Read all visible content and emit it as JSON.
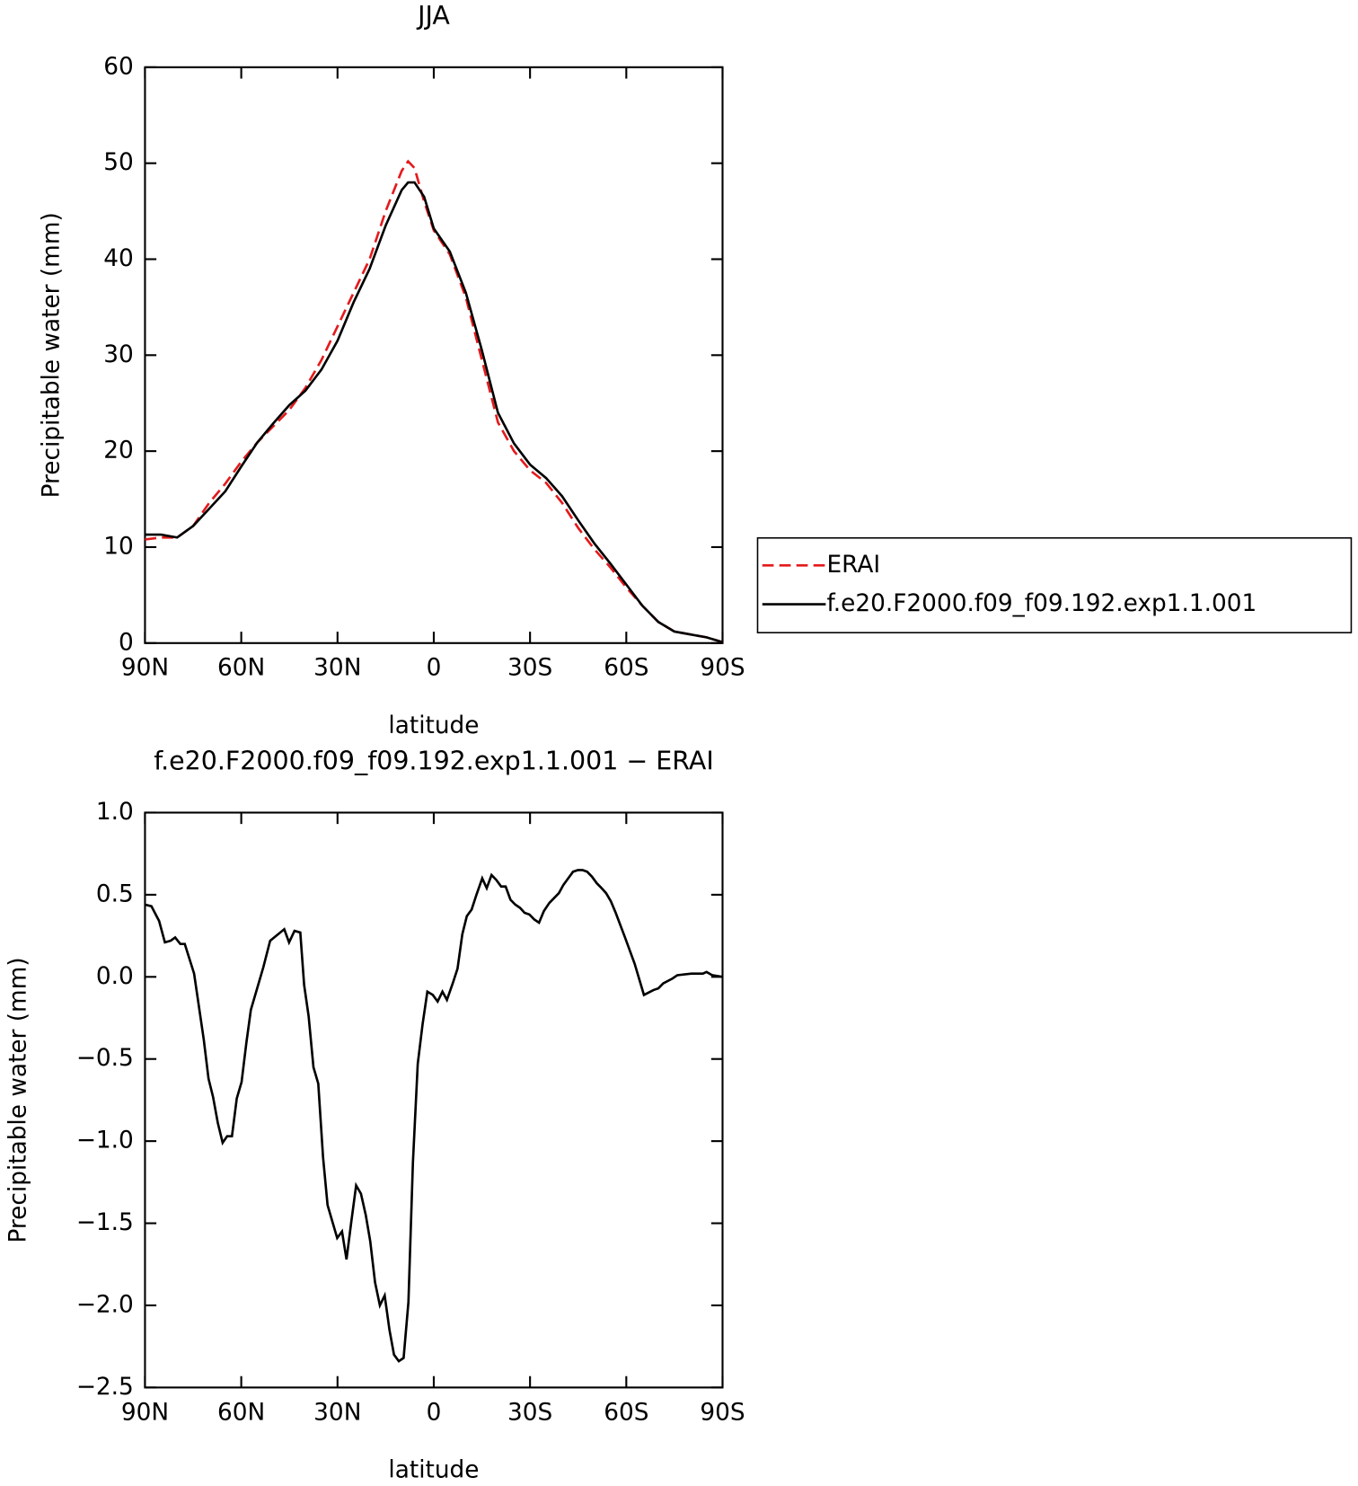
{
  "chart_data": [
    {
      "type": "line",
      "title": "JJA",
      "xlabel": "latitude",
      "ylabel": "Precipitable water (mm)",
      "xlim": [
        90,
        -90
      ],
      "xticks": [
        {
          "value": 90,
          "label": "90N"
        },
        {
          "value": 60,
          "label": "60N"
        },
        {
          "value": 30,
          "label": "30N"
        },
        0,
        {
          "value": -30,
          "label": "30S"
        },
        {
          "value": -60,
          "label": "60S"
        },
        {
          "value": -90,
          "label": "90S"
        }
      ],
      "ylim": [
        0,
        60
      ],
      "yticks": [
        0,
        10,
        20,
        30,
        40,
        50,
        60
      ],
      "legend": "right",
      "x": [
        90,
        85,
        80,
        75,
        70,
        65,
        60,
        55,
        50,
        45,
        40,
        35,
        30,
        25,
        20,
        15,
        10,
        8,
        6,
        3,
        0,
        -5,
        -10,
        -15,
        -20,
        -25,
        -30,
        -35,
        -40,
        -45,
        -50,
        -55,
        -60,
        -65,
        -70,
        -75,
        -80,
        -85,
        -90
      ],
      "series": [
        {
          "name": "ERAI",
          "color": "#e41a1c",
          "style": "dashed",
          "values": [
            10.8,
            11.0,
            11.0,
            12.2,
            14.6,
            16.6,
            18.9,
            20.9,
            22.6,
            24.3,
            26.6,
            29.5,
            33.0,
            36.5,
            40.0,
            45.0,
            49.2,
            50.2,
            49.5,
            46.0,
            43.0,
            40.5,
            36.0,
            29.5,
            23.0,
            20.0,
            18.0,
            16.7,
            14.6,
            12.0,
            9.8,
            7.9,
            5.8,
            3.9,
            2.2,
            1.2,
            0.9,
            0.6,
            0.1
          ]
        },
        {
          "name": "f.e20.F2000.f09_f09.192.exp1.1.001",
          "color": "#000000",
          "style": "solid",
          "values": [
            11.3,
            11.3,
            11.0,
            12.2,
            14.0,
            15.8,
            18.4,
            20.9,
            22.9,
            24.8,
            26.3,
            28.5,
            31.5,
            35.5,
            39.0,
            43.5,
            47.2,
            48.0,
            48.0,
            46.5,
            43.2,
            40.8,
            36.5,
            30.5,
            24.0,
            20.8,
            18.6,
            17.2,
            15.3,
            12.8,
            10.4,
            8.3,
            6.1,
            3.9,
            2.2,
            1.2,
            0.9,
            0.6,
            0.1
          ]
        }
      ]
    },
    {
      "type": "line",
      "title": "f.e20.F2000.f09_f09.192.exp1.1.001 − ERAI",
      "xlabel": "latitude",
      "ylabel": "Precipitable water (mm)",
      "xlim": [
        90,
        -90
      ],
      "xticks": [
        {
          "value": 90,
          "label": "90N"
        },
        {
          "value": 60,
          "label": "60N"
        },
        {
          "value": 30,
          "label": "30N"
        },
        0,
        {
          "value": -30,
          "label": "30S"
        },
        {
          "value": -60,
          "label": "60S"
        },
        {
          "value": -90,
          "label": "90S"
        }
      ],
      "ylim": [
        -2.5,
        1.0
      ],
      "yticks": [
        {
          "value": 1.0,
          "label": "1.0"
        },
        0.5,
        {
          "value": 0.0,
          "label": "0.0"
        },
        {
          "value": -0.5,
          "label": "−0.5"
        },
        {
          "value": -1.0,
          "label": "−1.0"
        },
        {
          "value": -1.5,
          "label": "−1.5"
        },
        {
          "value": -2.0,
          "label": "−2.0"
        },
        {
          "value": -2.5,
          "label": "−2.5"
        }
      ],
      "color": "#000000",
      "x": [
        90,
        88,
        85.6,
        83.8,
        82,
        80.6,
        79,
        77.6,
        74.7,
        71.7,
        70.2,
        68.8,
        67.3,
        65.8,
        64.4,
        62.9,
        61.4,
        59.9,
        58.4,
        57,
        55.5,
        53.1,
        51,
        46.6,
        45.1,
        43.4,
        41.6,
        40.4,
        39,
        37.5,
        36,
        34.5,
        33.1,
        31.6,
        30.1,
        28.6,
        27.2,
        25.7,
        24.2,
        22.7,
        21.2,
        19.8,
        18.3,
        16.8,
        15.3,
        13.8,
        12.4,
        10.9,
        9.4,
        7.9,
        6.5,
        5,
        3.5,
        2.0,
        0.3,
        -1.2,
        -2.7,
        -4.1,
        -5.9,
        -7.4,
        -8.9,
        -10.3,
        -11.8,
        -13.3,
        -15.1,
        -16.5,
        -18,
        -19.5,
        -21,
        -22.4,
        -23.9,
        -25.4,
        -26.9,
        -28.3,
        -29.8,
        -31.3,
        -32.8,
        -34.3,
        -36,
        -37.5,
        -39,
        -40.4,
        -41.9,
        -43.4,
        -44.9,
        -46.4,
        -47.8,
        -49.3,
        -50.8,
        -52.3,
        -53.7,
        -55.2,
        -56.7,
        -59.6,
        -62.6,
        -65.5,
        -68.5,
        -70,
        -71.5,
        -74.4,
        -75.9,
        -80.3,
        -81.8,
        -83.9,
        -85,
        -86.8,
        -90
      ],
      "values": [
        0.44,
        0.43,
        0.34,
        0.21,
        0.22,
        0.24,
        0.2,
        0.2,
        0.02,
        -0.38,
        -0.62,
        -0.73,
        -0.89,
        -1.01,
        -0.97,
        -0.97,
        -0.74,
        -0.64,
        -0.4,
        -0.2,
        -0.1,
        0.06,
        0.22,
        0.29,
        0.21,
        0.28,
        0.27,
        -0.05,
        -0.24,
        -0.55,
        -0.65,
        -1.1,
        -1.39,
        -1.49,
        -1.59,
        -1.55,
        -1.72,
        -1.49,
        -1.27,
        -1.32,
        -1.45,
        -1.61,
        -1.86,
        -2.0,
        -1.94,
        -2.15,
        -2.3,
        -2.34,
        -2.32,
        -1.98,
        -1.13,
        -0.53,
        -0.29,
        -0.09,
        -0.11,
        -0.15,
        -0.09,
        -0.14,
        -0.04,
        0.05,
        0.26,
        0.37,
        0.41,
        0.5,
        0.6,
        0.54,
        0.62,
        0.59,
        0.55,
        0.55,
        0.47,
        0.44,
        0.42,
        0.39,
        0.38,
        0.35,
        0.33,
        0.4,
        0.45,
        0.48,
        0.51,
        0.56,
        0.6,
        0.64,
        0.65,
        0.65,
        0.64,
        0.61,
        0.57,
        0.54,
        0.51,
        0.46,
        0.39,
        0.24,
        0.08,
        -0.11,
        -0.08,
        -0.07,
        -0.04,
        -0.01,
        0.01,
        0.02,
        0.02,
        0.02,
        0.03,
        0.01,
        0.0
      ]
    }
  ]
}
